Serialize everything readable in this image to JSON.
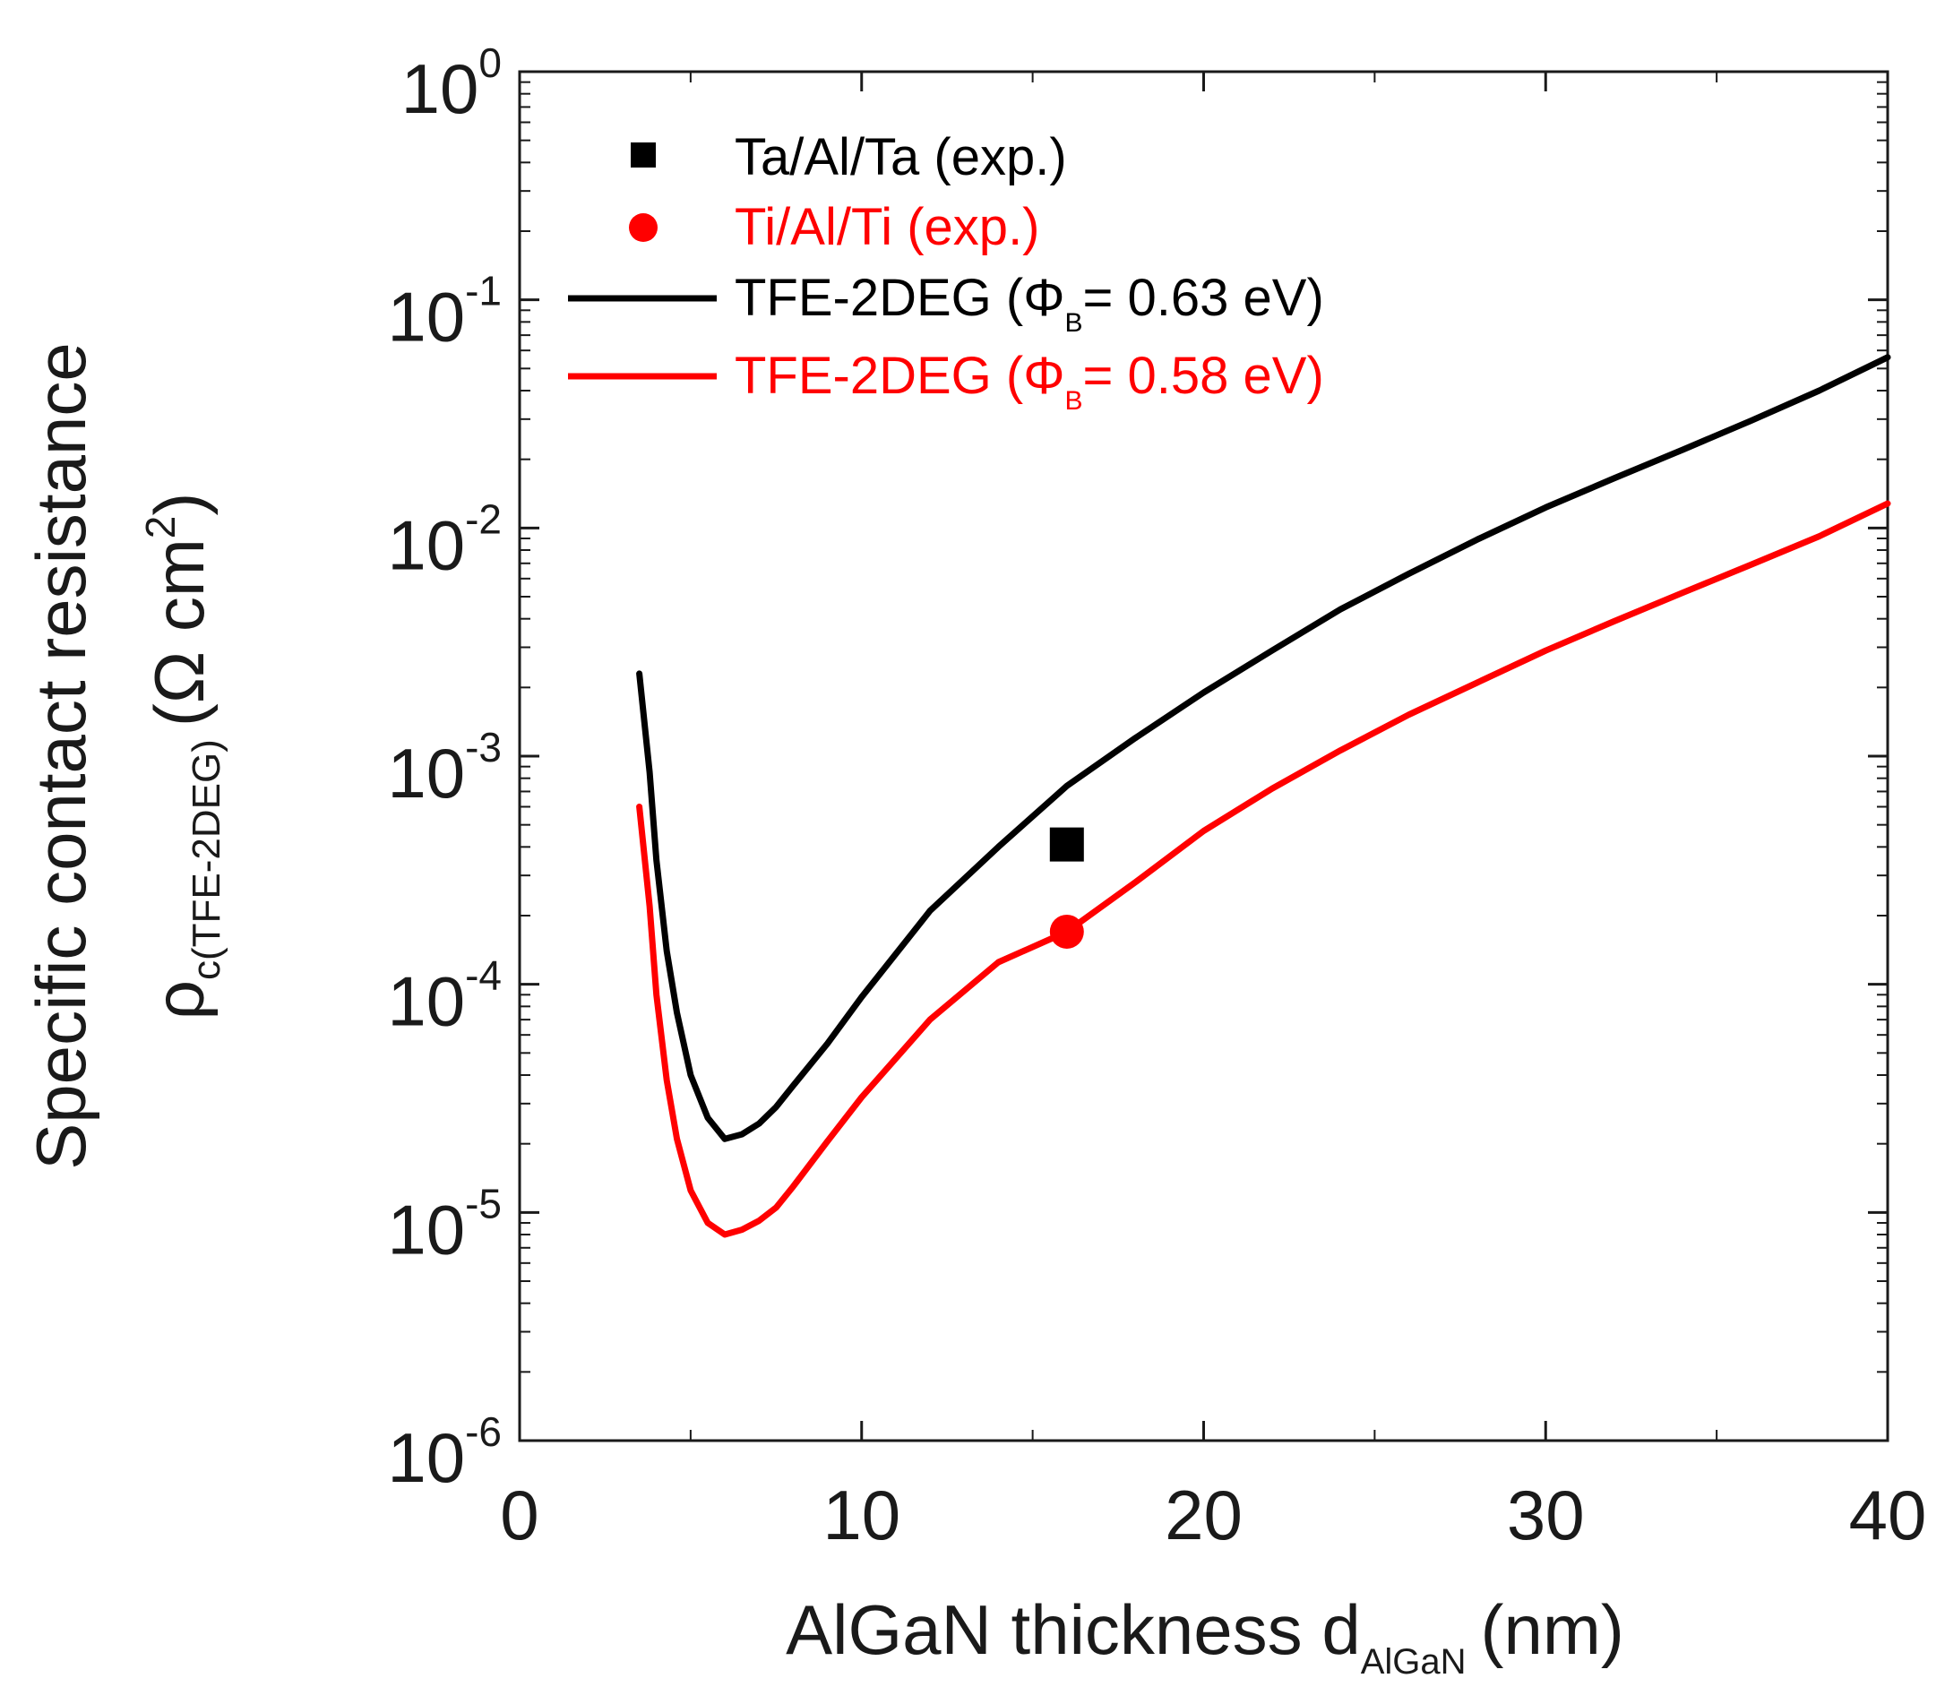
{
  "chart_data": {
    "type": "line",
    "title": "",
    "xlabel": {
      "main": "AlGaN thickness d",
      "sub": "AlGaN",
      "unit": "(nm)"
    },
    "ylabel": {
      "line1": "Specific contact resistance",
      "rho": "ρ",
      "sub": "c(TFE-2DEG)",
      "unit_open": "(Ω cm",
      "unit_sup": "2",
      "unit_close": ")"
    },
    "x_scale": "linear",
    "y_scale": "log",
    "xlim": [
      0,
      40
    ],
    "ylim": [
      1e-06,
      1
    ],
    "x_ticks": [
      {
        "value": 0,
        "label": "0"
      },
      {
        "value": 10,
        "label": "10"
      },
      {
        "value": 20,
        "label": "20"
      },
      {
        "value": 30,
        "label": "30"
      },
      {
        "value": 40,
        "label": "40"
      }
    ],
    "y_ticks": [
      {
        "value": 1.0,
        "base": "10",
        "exp": "0"
      },
      {
        "value": 0.1,
        "base": "10",
        "exp": "-1"
      },
      {
        "value": 0.01,
        "base": "10",
        "exp": "-2"
      },
      {
        "value": 0.001,
        "base": "10",
        "exp": "-3"
      },
      {
        "value": 0.0001,
        "base": "10",
        "exp": "-4"
      },
      {
        "value": 1e-05,
        "base": "10",
        "exp": "-5"
      },
      {
        "value": 1e-06,
        "base": "10",
        "exp": "-6"
      }
    ],
    "series": [
      {
        "name": "TFE-2DEG (ΦB= 0.63 eV)",
        "color": "#000000",
        "kind": "line",
        "x": [
          3.5,
          3.8,
          4.0,
          4.3,
          4.6,
          5.0,
          5.5,
          6.0,
          6.5,
          7.0,
          7.5,
          8.0,
          9.0,
          10.0,
          12.0,
          14.0,
          16.0,
          18.0,
          20.0,
          22.0,
          24.0,
          26.0,
          28.0,
          30.0,
          32.0,
          34.0,
          36.0,
          38.0,
          40.0
        ],
        "y": [
          0.0023,
          0.00085,
          0.00035,
          0.00014,
          7.5e-05,
          4e-05,
          2.6e-05,
          2.1e-05,
          2.2e-05,
          2.45e-05,
          2.9e-05,
          3.6e-05,
          5.5e-05,
          8.8e-05,
          0.00021,
          0.0004,
          0.00074,
          0.0012,
          0.0019,
          0.0029,
          0.0044,
          0.0063,
          0.0089,
          0.0123,
          0.0165,
          0.022,
          0.0295,
          0.04,
          0.056
        ]
      },
      {
        "name": "TFE-2DEG (ΦB= 0.58 eV)",
        "color": "#ff0000",
        "kind": "line",
        "x": [
          3.5,
          3.8,
          4.0,
          4.3,
          4.6,
          5.0,
          5.5,
          6.0,
          6.5,
          7.0,
          7.5,
          8.0,
          9.0,
          10.0,
          12.0,
          14.0,
          16.0,
          18.0,
          20.0,
          22.0,
          24.0,
          26.0,
          28.0,
          30.0,
          32.0,
          34.0,
          36.0,
          38.0,
          40.0
        ],
        "y": [
          0.0006,
          0.00022,
          9e-05,
          3.8e-05,
          2.1e-05,
          1.25e-05,
          9e-06,
          8e-06,
          8.4e-06,
          9.2e-06,
          1.05e-05,
          1.3e-05,
          2.05e-05,
          3.2e-05,
          7e-05,
          0.000125,
          0.00017,
          0.00028,
          0.00047,
          0.00072,
          0.00106,
          0.00152,
          0.0021,
          0.0029,
          0.0039,
          0.0052,
          0.0069,
          0.0092,
          0.0128
        ]
      },
      {
        "name": "Ta/Al/Ta (exp.)",
        "color": "#000000",
        "kind": "scatter",
        "marker": "square",
        "x": [
          16.0
        ],
        "y": [
          0.00041
        ]
      },
      {
        "name": "Ti/Al/Ti (exp.)",
        "color": "#ff0000",
        "kind": "scatter",
        "marker": "circle",
        "x": [
          16.0
        ],
        "y": [
          0.00017
        ]
      }
    ],
    "legend": {
      "position": "top-left",
      "entries": [
        {
          "label": "Ta/Al/Ta (exp.)",
          "color": "#000000",
          "marker": "square"
        },
        {
          "label": "Ti/Al/Ti (exp.)",
          "color": "#ff0000",
          "marker": "circle"
        },
        {
          "label_main": "TFE-2DEG (Φ",
          "label_sub": "B",
          "label_rest": "= 0.63 eV)",
          "color": "#000000",
          "marker": "line"
        },
        {
          "label_main": "TFE-2DEG (Φ",
          "label_sub": "B",
          "label_rest": "= 0.58 eV)",
          "color": "#ff0000",
          "marker": "line"
        }
      ]
    }
  }
}
